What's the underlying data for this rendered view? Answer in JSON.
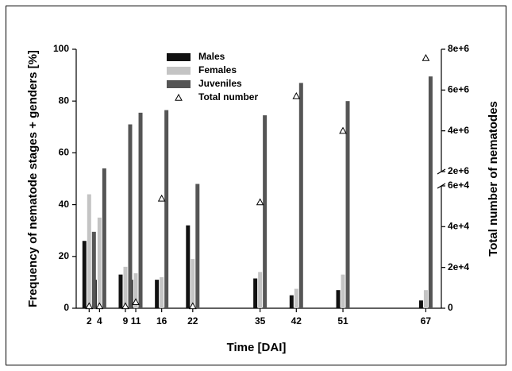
{
  "chart_data": {
    "type": "bar",
    "x": [
      2,
      4,
      9,
      11,
      16,
      22,
      35,
      42,
      51,
      67
    ],
    "xticks": [
      2,
      4,
      9,
      11,
      16,
      22,
      35,
      42,
      51,
      67
    ],
    "xlim": [
      -0.5,
      70
    ],
    "x_label": "Time [DAI]",
    "y_label": "Frequency of nematode stages + genders [%]",
    "y2_label": "Total number of nematodes",
    "ylim": [
      0,
      100
    ],
    "yticks": [
      0,
      20,
      40,
      60,
      80,
      100
    ],
    "y2lim": [
      0,
      8000000
    ],
    "y2_break": [
      60000,
      2000000
    ],
    "y2ticks": [
      0,
      {
        "value": 20000,
        "label": "2e+4"
      },
      {
        "value": 40000,
        "label": "4e+4"
      },
      {
        "value": 60000,
        "label": "6e+4"
      },
      {
        "value": 2000000,
        "label": "2e+6"
      },
      {
        "value": 4000000,
        "label": "4e+6"
      },
      {
        "value": 6000000,
        "label": "6e+6"
      },
      {
        "value": 8000000,
        "label": "8e+6"
      }
    ],
    "series": [
      {
        "name": "Males",
        "color": "#111111",
        "values": [
          26,
          11,
          13,
          11,
          11,
          32,
          11.5,
          5,
          7,
          3
        ]
      },
      {
        "name": "Females",
        "color": "#c4c4c4",
        "values": [
          44,
          35,
          16,
          13.5,
          12,
          19,
          14,
          7.5,
          13,
          7
        ]
      },
      {
        "name": "Juveniles",
        "color": "#555555",
        "values": [
          29.5,
          54,
          71,
          75.5,
          76.5,
          48,
          74.5,
          87,
          80,
          89.5
        ]
      },
      {
        "name": "Total number",
        "color": "#000000",
        "axis": "y2",
        "marker": "triangle",
        "values": [
          1000,
          1000,
          1000,
          3000,
          53800,
          1000,
          52000,
          5700000,
          4000000,
          7570000
        ]
      }
    ]
  }
}
